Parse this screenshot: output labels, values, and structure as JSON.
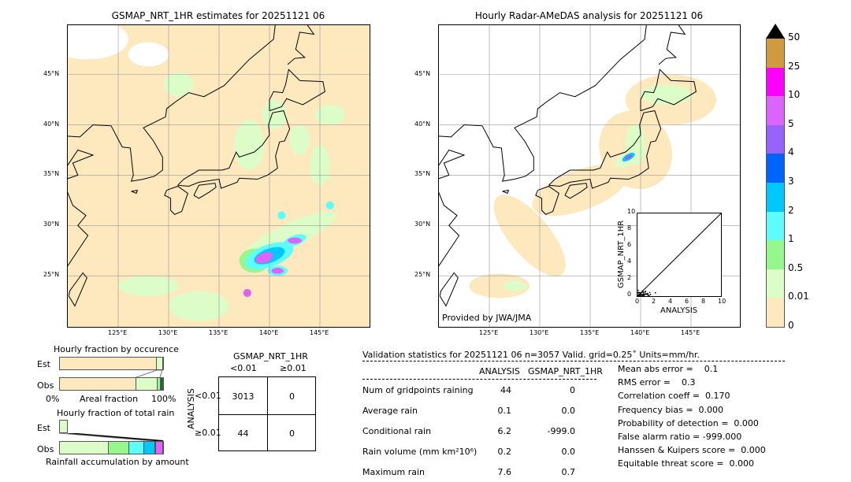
{
  "left_map": {
    "title": "GSMAP_NRT_1HR estimates for 20251121 06",
    "lon_ticks": [
      "125°E",
      "130°E",
      "135°E",
      "140°E",
      "145°E"
    ],
    "lat_ticks": [
      "45°N",
      "40°N",
      "35°N",
      "30°N",
      "25°N"
    ]
  },
  "right_map": {
    "title": "Hourly Radar-AMeDAS analysis for 20251121 06",
    "lon_ticks": [
      "125°E",
      "130°E",
      "135°E",
      "140°E",
      "145°E"
    ],
    "lat_ticks": [
      "45°N",
      "40°N",
      "35°N",
      "30°N",
      "25°N"
    ],
    "credit": "Provided by JWA/JMA"
  },
  "colorbar": {
    "ticks": [
      "0",
      "0.01",
      "0.5",
      "1",
      "2",
      "3",
      "4",
      "5",
      "10",
      "25",
      "50"
    ],
    "colors": [
      "#fee8be",
      "#dcfcc8",
      "#96f88c",
      "#5efcfc",
      "#00c8fc",
      "#0064fc",
      "#9664fc",
      "#dc64fc",
      "#fc00fc",
      "#d09a40"
    ],
    "extend_color": "#000000"
  },
  "occurrence": {
    "title": "Hourly fraction by occurence",
    "est_label": "Est",
    "obs_label": "Obs",
    "x_min": "0%",
    "x_label": "Areal fraction",
    "x_max": "100%"
  },
  "total_rain": {
    "title": "Hourly fraction of total rain",
    "est_label": "Est",
    "obs_label": "Obs",
    "x_label": "Rainfall accumulation by amount"
  },
  "contingency": {
    "title": "GSMAP_NRT_1HR",
    "col_labels": [
      "<0.01",
      "≥0.01"
    ],
    "row_axis": "ANALYSIS",
    "row_labels": [
      "<0.01",
      "≥0.01"
    ],
    "cells": [
      [
        "3013",
        "0"
      ],
      [
        "44",
        "0"
      ]
    ]
  },
  "stats": {
    "header": "Validation statistics for 20251121 06  n=3057 Valid. grid=0.25˚ Units=mm/hr.",
    "col_headers": [
      "ANALYSIS",
      "GSMAP_NRT_1HR"
    ],
    "rows": [
      {
        "label": "Num of gridpoints raining",
        "a": "44",
        "g": "0"
      },
      {
        "label": "Average rain",
        "a": "0.1",
        "g": "0.0"
      },
      {
        "label": "Conditional rain",
        "a": "6.2",
        "g": "-999.0"
      },
      {
        "label": "Rain volume (mm km²10⁶)",
        "a": "0.2",
        "g": "0.0"
      },
      {
        "label": "Maximum rain",
        "a": "7.6",
        "g": "0.7"
      }
    ],
    "scores": [
      "Mean abs error =    0.1",
      "RMS error =    0.3",
      "Correlation coeff =  0.170",
      "Frequency bias =  0.000",
      "Probability of detection =  0.000",
      "False alarm ratio = -999.000",
      "Hanssen & Kuipers score =  0.000",
      "Equitable threat score =  0.000"
    ]
  },
  "chart_data": [
    {
      "type": "scatter",
      "xlabel": "ANALYSIS",
      "ylabel": "GSMAP_NRT_1HR",
      "xlim": [
        0,
        10
      ],
      "ylim": [
        0,
        10
      ],
      "x_ticks": [
        "0",
        "2",
        "4",
        "6",
        "8",
        "10"
      ],
      "y_ticks": [
        "0",
        "2",
        "4",
        "6",
        "8",
        "10"
      ],
      "note": "points clustered near y≈0 for x 0–2.5 with 1:1 line"
    },
    {
      "type": "bar",
      "title": "Hourly fraction by occurence",
      "categories": [
        "Est",
        "Obs"
      ],
      "series": [
        {
          "values": [
            94,
            74
          ]
        },
        {
          "values": [
            6,
            21
          ]
        },
        {
          "values": [
            0,
            2.5
          ]
        },
        {
          "values": [
            0,
            2.5
          ]
        }
      ]
    },
    {
      "type": "bar",
      "title": "Hourly fraction of total rain",
      "categories": [
        "Obs"
      ],
      "series": [
        {
          "values": [
            47
          ]
        },
        {
          "values": [
            20
          ]
        },
        {
          "values": [
            15
          ]
        },
        {
          "values": [
            10
          ]
        },
        {
          "values": [
            1
          ]
        },
        {
          "values": [
            7
          ]
        }
      ]
    }
  ]
}
